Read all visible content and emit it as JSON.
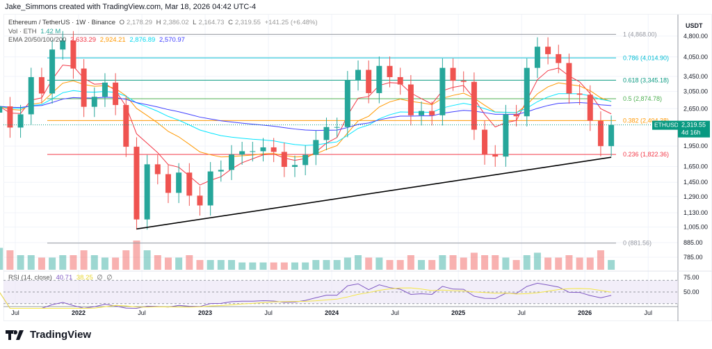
{
  "header": {
    "credit": "Jake_Simmons created with TradingView.com, Mar 18, 2026 04:42 UTC-4"
  },
  "legend": {
    "symbol": "Ethereum / TetherUS · 1W · Binance",
    "o_label": "O",
    "o": "2,178.29",
    "h_label": "H",
    "h": "2,386.02",
    "l_label": "L",
    "l": "2,164.73",
    "c_label": "C",
    "c": "2,319.55",
    "change": "+141.25 (+6.48%)",
    "vol_label": "Vol · ETH",
    "vol": "1.42 M",
    "ema_label": "EMA 20/50/100/200",
    "ema20": "2,633.29",
    "ema50": "2,924.21",
    "ema100": "2,876.89",
    "ema200": "2,570.97",
    "rsi_label": "RSI (14, close)",
    "rsi": "40.71",
    "rsi_ma": "38.25",
    "na1": "∅",
    "na2": "∅"
  },
  "price_axis": {
    "currency": "USDT",
    "ticks": [
      "4,800.00",
      "4,050.00",
      "3,450.00",
      "3,050.00",
      "2,650.00",
      "1,950.00",
      "1,650.00",
      "1,450.00",
      "1,290.00",
      "1,130.00",
      "1,005.00",
      "885.00",
      "785.00"
    ],
    "tick_values": [
      4800,
      4050,
      3450,
      3050,
      2650,
      1950,
      1650,
      1450,
      1290,
      1130,
      1005,
      885,
      785
    ],
    "last_price_tag": {
      "symbol": "ETHUSDT",
      "price": "2,319.55",
      "countdown": "4d 16h",
      "value": 2319.55
    }
  },
  "rsi_axis": {
    "ticks": [
      "75.00",
      "50.00"
    ],
    "tick_values": [
      75,
      50
    ]
  },
  "time_axis": {
    "ticks": [
      "Jul",
      "2022",
      "Jul",
      "2023",
      "Jul",
      "2024",
      "Jul",
      "2025",
      "Jul",
      "2026",
      "Jul"
    ],
    "tick_months": [
      0,
      6,
      12,
      18,
      24,
      30,
      36,
      42,
      48,
      54,
      60
    ]
  },
  "brand": {
    "name": "TradingView"
  },
  "colors": {
    "up": "#26a69a",
    "down": "#ef5350",
    "ema20": "#f23645",
    "ema50": "#ff9800",
    "ema100": "#00e5ff",
    "ema200": "#3d3dff",
    "rsi": "#7e57c2",
    "rsi_ma": "#f5e642",
    "accent": "#089981"
  },
  "chart_data": {
    "type": "candlestick",
    "scale": "log",
    "ylim": [
      740,
      5300
    ],
    "grid": true,
    "start": "2021-05",
    "interval": "approx monthly",
    "closes": [
      2700,
      2270,
      2530,
      3430,
      3000,
      4300,
      4630,
      3680,
      2690,
      2920,
      3280,
      2730,
      1940,
      1070,
      1680,
      1550,
      1330,
      1570,
      1300,
      1200,
      1585,
      1605,
      1820,
      1870,
      1870,
      1930,
      1860,
      1645,
      1670,
      1815,
      2050,
      2280,
      2280,
      3340,
      3640,
      3010,
      3760,
      3430,
      3230,
      2510,
      2600,
      2510,
      3700,
      3330,
      3300,
      2230,
      1820,
      1790,
      2530,
      2490,
      3700,
      4400,
      4140,
      3850,
      3000,
      2970,
      2400,
      1950,
      2319.55
    ],
    "volume_m": [
      9,
      8,
      6,
      6,
      5,
      5,
      6,
      6,
      8,
      6,
      5,
      5,
      8,
      12,
      8,
      6,
      5,
      5,
      6,
      4,
      4,
      4,
      4,
      3,
      3,
      3,
      3,
      3,
      3,
      3,
      4,
      4,
      4,
      5,
      6,
      5,
      5,
      4,
      4,
      6,
      4,
      4,
      6,
      6,
      5,
      7,
      6,
      6,
      5,
      4,
      6,
      7,
      5,
      5,
      6,
      5,
      5,
      8,
      4
    ],
    "fib_levels": [
      {
        "ratio": "1",
        "label": "1 (4,868.00)",
        "value": 4868.0,
        "color": "#9598a1"
      },
      {
        "ratio": "0.786",
        "label": "0.786 (4,014.90)",
        "value": 4014.9,
        "color": "#00bcd4"
      },
      {
        "ratio": "0.618",
        "label": "0.618 (3,345.18)",
        "value": 3345.18,
        "color": "#089981"
      },
      {
        "ratio": "0.5",
        "label": "0.5 (2,874.78)",
        "value": 2874.78,
        "color": "#4caf50"
      },
      {
        "ratio": "0.382",
        "label": "0.382 (2,404.38)",
        "value": 2404.38,
        "color": "#ff9800"
      },
      {
        "ratio": "0.236",
        "label": "0.236 (1,822.36)",
        "value": 1822.36,
        "color": "#f23645"
      },
      {
        "ratio": "0",
        "label": "0 (881.56)",
        "value": 881.56,
        "color": "#9598a1"
      }
    ],
    "trendline": {
      "from": {
        "date": "2022-06",
        "price": 990
      },
      "to": {
        "date": "2026-03",
        "price": 1780
      },
      "color": "#000000"
    }
  }
}
